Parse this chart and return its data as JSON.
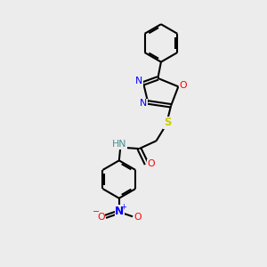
{
  "background_color": "#ececec",
  "bond_color": "#000000",
  "atom_colors": {
    "N": "#0000ff",
    "O": "#ff0000",
    "S": "#cccc00",
    "H": "#4a9090",
    "C": "#000000"
  },
  "line_width": 1.5,
  "figsize": [
    3.0,
    3.0
  ],
  "dpi": 100,
  "xlim": [
    0,
    10
  ],
  "ylim": [
    0,
    10
  ]
}
